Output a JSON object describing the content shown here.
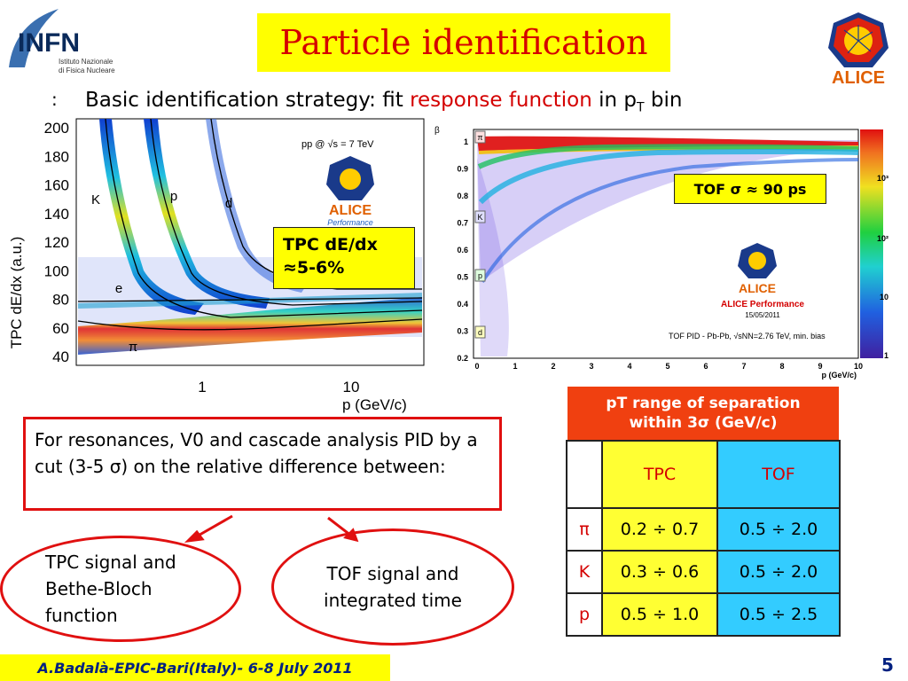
{
  "slide": {
    "title": "Particle identification",
    "bullet": ":",
    "subtitle_part1": "Basic identification strategy: fit ",
    "subtitle_red": "response function",
    "subtitle_part2": " in p",
    "subtitle_sub": "T",
    "subtitle_part3": " bin"
  },
  "logos": {
    "infn_text": "INFN",
    "infn_line1": "Istituto Nazionale",
    "infn_line2": "di Fisica Nucleare",
    "alice_text": "ALICE"
  },
  "tpc_plot": {
    "ylabel": "TPC dE/dx (a.u.)",
    "xlabel": "p  (GeV/c)",
    "yticks": [
      "200",
      "180",
      "160",
      "140",
      "120",
      "100",
      "80",
      "60",
      "40"
    ],
    "xticks": [
      "1",
      "10"
    ],
    "energy_label": "pp @ √s = 7 TeV",
    "alice_text": "ALICE",
    "alice_sub": "Performance",
    "particles": [
      "K",
      "p",
      "d",
      "e",
      "π"
    ],
    "resolution_line1": "TPC dE/dx",
    "resolution_line2": "≈5-6%"
  },
  "tof_plot": {
    "ylabel": "β",
    "xlabel": "p (GeV/c)",
    "yticks": [
      "1",
      "0.9",
      "0.8",
      "0.7",
      "0.6",
      "0.5",
      "0.4",
      "0.3",
      "0.2"
    ],
    "xticks": [
      "0",
      "1",
      "2",
      "3",
      "4",
      "5",
      "6",
      "7",
      "8",
      "9",
      "10"
    ],
    "colorbar_ticks": [
      "10³",
      "10²",
      "10",
      "1"
    ],
    "particles": [
      "π",
      "K",
      "p",
      "d"
    ],
    "alice_text": "ALICE",
    "alice_perf": "ALICE Performance",
    "alice_date": "15/05/2011",
    "caption": "TOF PID - Pb-Pb, √sNN=2.76 TeV, min. bias",
    "resolution": "TOF σ ≈ 90 ps"
  },
  "pid_box": {
    "text": "For resonances, V0 and cascade analysis PID  by a cut (3-5 σ) on the relative difference between:"
  },
  "ovals": {
    "tpc": "TPC signal and Bethe-Bloch function",
    "tof": "TOF signal and integrated time"
  },
  "range_table": {
    "header_line1": "pT range of separation",
    "header_line2": "within 3σ (GeV/c)",
    "col_tpc": "TPC",
    "col_tof": "TOF",
    "rows": [
      {
        "particle": "π",
        "tpc": "0.2 ÷ 0.7",
        "tof": "0.5 ÷ 2.0"
      },
      {
        "particle": "K",
        "tpc": "0.3 ÷ 0.6",
        "tof": "0.5 ÷ 2.0"
      },
      {
        "particle": "p",
        "tpc": "0.5 ÷ 1.0",
        "tof": "0.5 ÷ 2.5"
      }
    ]
  },
  "footer": {
    "text": "A.Badalà-EPIC-Bari(Italy)- 6-8 July 2011",
    "page": "5"
  },
  "colors": {
    "accent_red": "#d40000",
    "highlight_yellow": "#ffff00",
    "header_orange": "#f04010",
    "tof_cyan": "#33ccff",
    "footer_blue": "#002080"
  }
}
